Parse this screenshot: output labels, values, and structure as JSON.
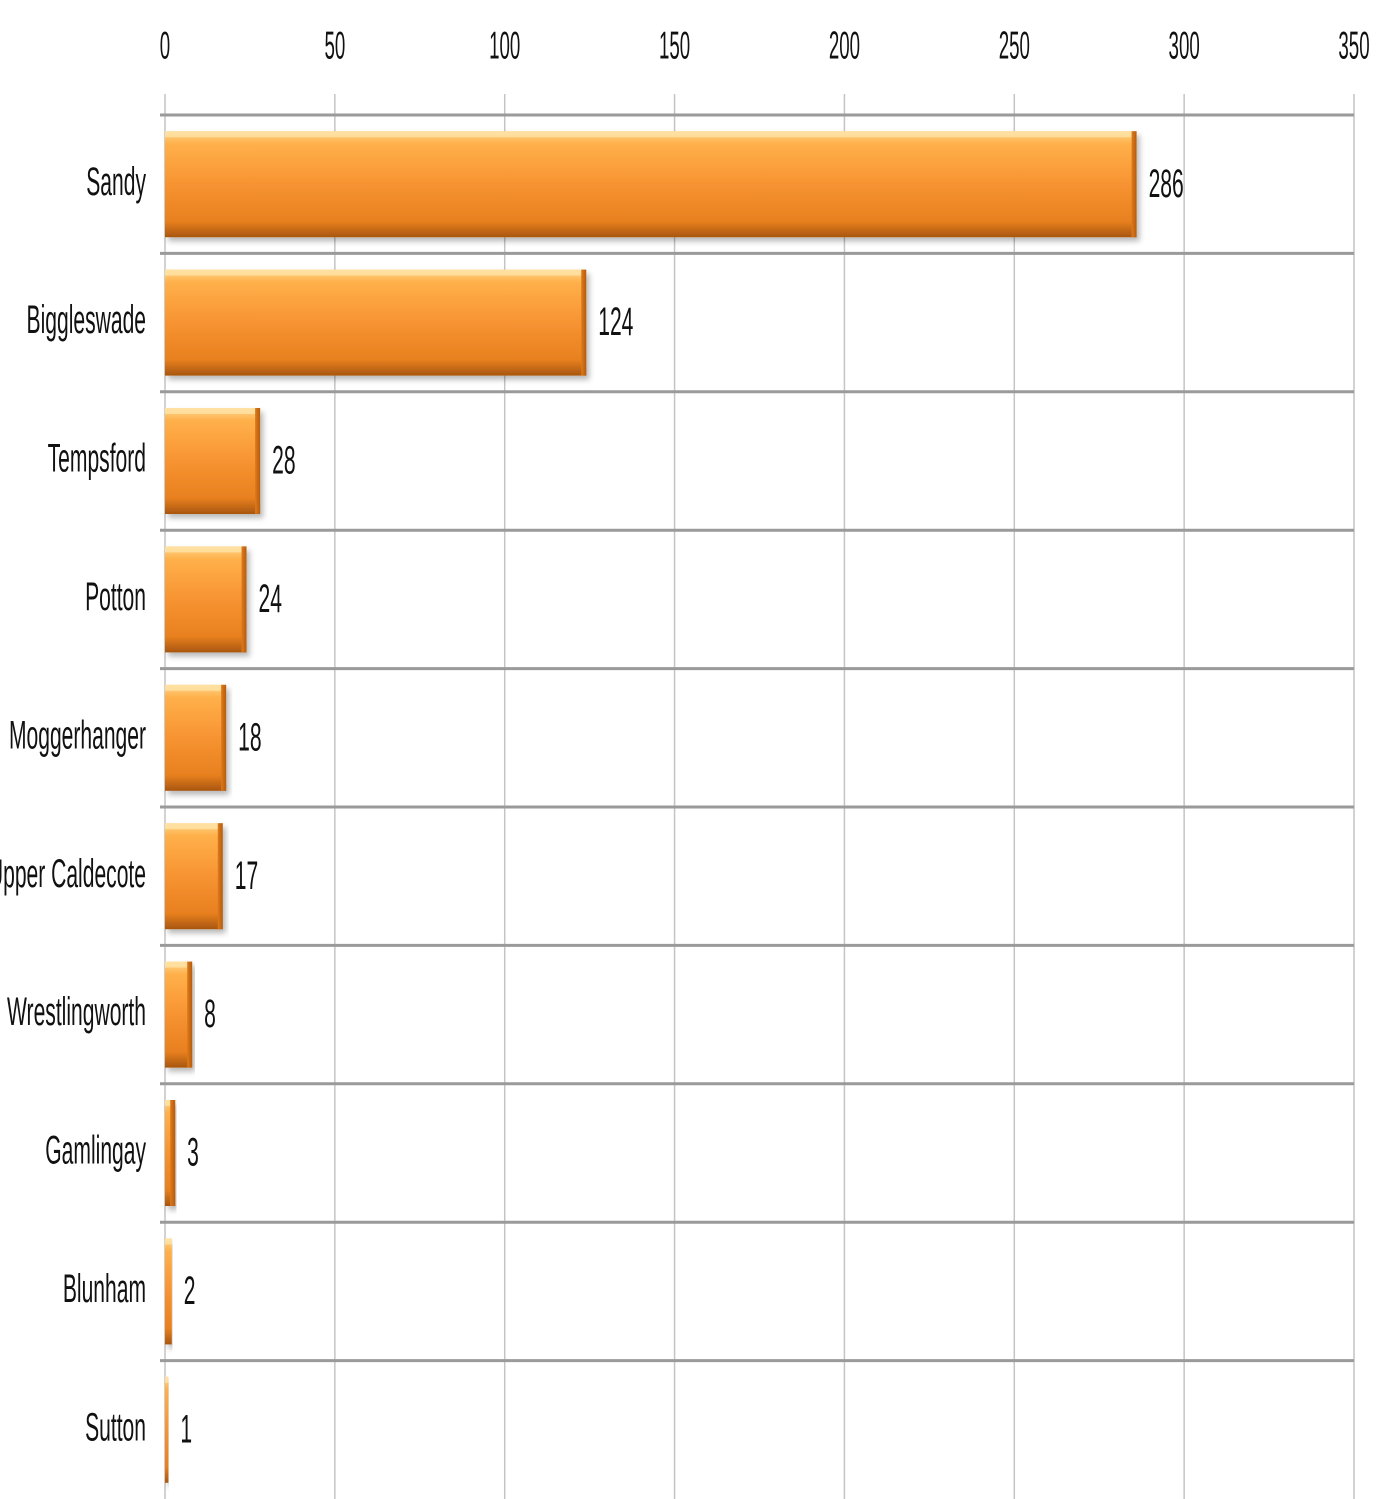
{
  "chart_data": {
    "type": "bar",
    "orientation": "horizontal",
    "categories": [
      "Sandy",
      "Biggleswade",
      "Tempsford",
      "Potton",
      "Moggerhanger",
      "Upper Caldecote",
      "Wrestlingworth",
      "Gamlingay",
      "Blunham",
      "Sutton"
    ],
    "values": [
      286,
      124,
      28,
      24,
      18,
      17,
      8,
      3,
      2,
      1
    ],
    "title": "",
    "xlabel": "",
    "ylabel": "",
    "xlim": [
      0,
      350
    ],
    "ticks": [
      "0",
      "50",
      "100",
      "150",
      "200",
      "250",
      "300",
      "350"
    ],
    "axis_position": "top",
    "grid": true,
    "data_labels": true,
    "bar_color": "#F79332",
    "bar_color_dark": "#B35C12",
    "bar_color_light": "#FFC46E",
    "grid_color": "#C4C4C4",
    "row_separator_color": "#9A9A9A"
  }
}
